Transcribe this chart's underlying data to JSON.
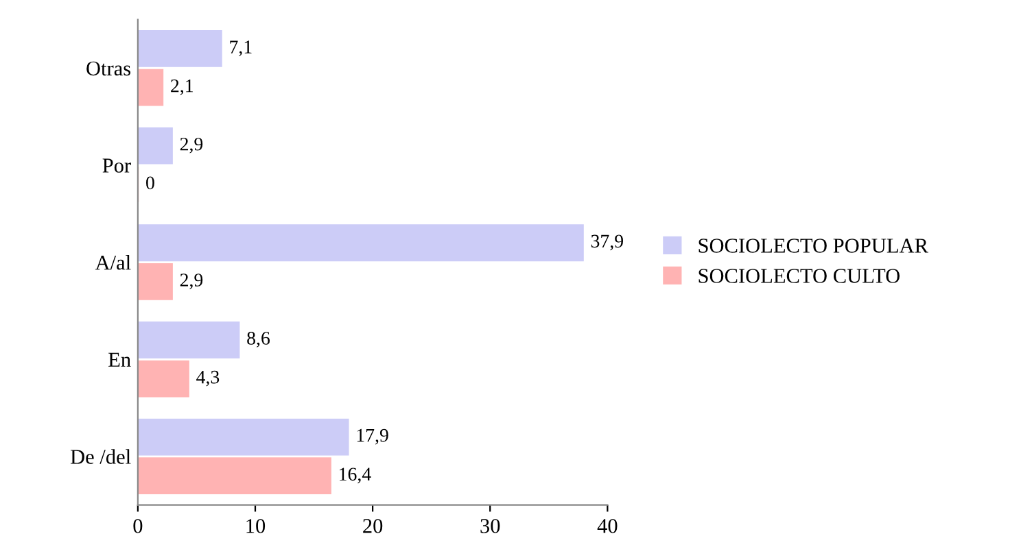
{
  "chart_data": {
    "type": "bar",
    "orientation": "horizontal",
    "categories": [
      "Otras",
      "Por",
      "A/al",
      "En",
      "De /del"
    ],
    "series": [
      {
        "name": "SOCIOLECTO POPULAR",
        "color": "#ccccf7",
        "values": [
          7.1,
          2.9,
          37.9,
          8.6,
          17.9
        ],
        "value_labels": [
          "7,1",
          "2,9",
          "37,9",
          "8,6",
          "17,9"
        ]
      },
      {
        "name": "SOCIOLECTO CULTO",
        "color": "#ffb3b3",
        "values": [
          2.1,
          0,
          2.9,
          4.3,
          16.4
        ],
        "value_labels": [
          "2,1",
          "0",
          "2,9",
          "4,3",
          "16,4"
        ]
      }
    ],
    "xlim": [
      0,
      40
    ],
    "xticks": [
      0,
      10,
      20,
      30,
      40
    ],
    "grid": false,
    "legend": "right"
  }
}
